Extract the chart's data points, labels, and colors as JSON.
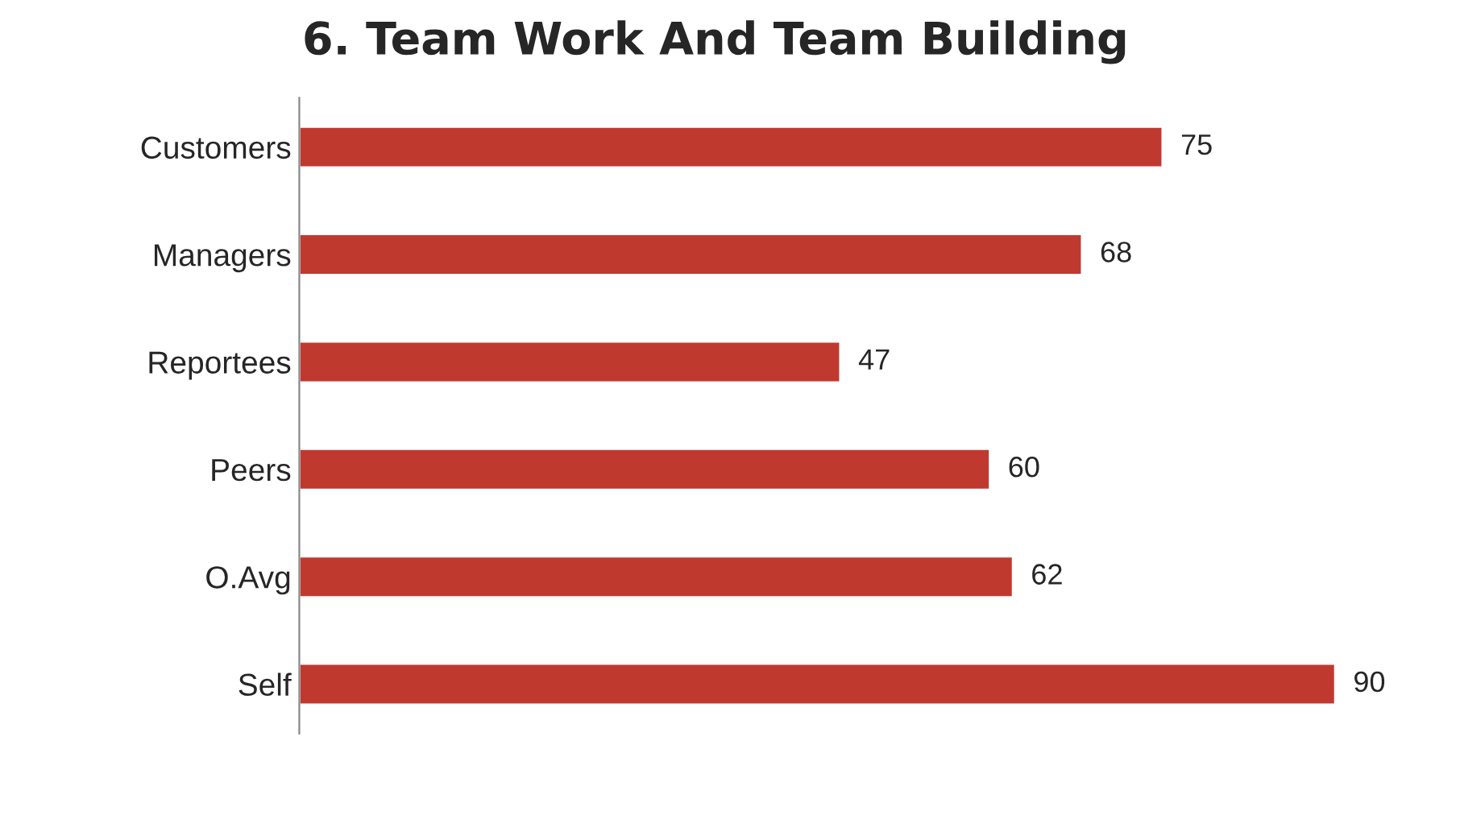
{
  "chart_data": {
    "type": "bar",
    "title": "6. Team Work And Team Building",
    "orientation": "horizontal",
    "categories": [
      "Customers",
      "Managers",
      "Reportees",
      "Peers",
      "O.Avg",
      "Self"
    ],
    "values": [
      75,
      68,
      47,
      60,
      62,
      90
    ],
    "color": "#c0392f",
    "data_labels": true
  }
}
